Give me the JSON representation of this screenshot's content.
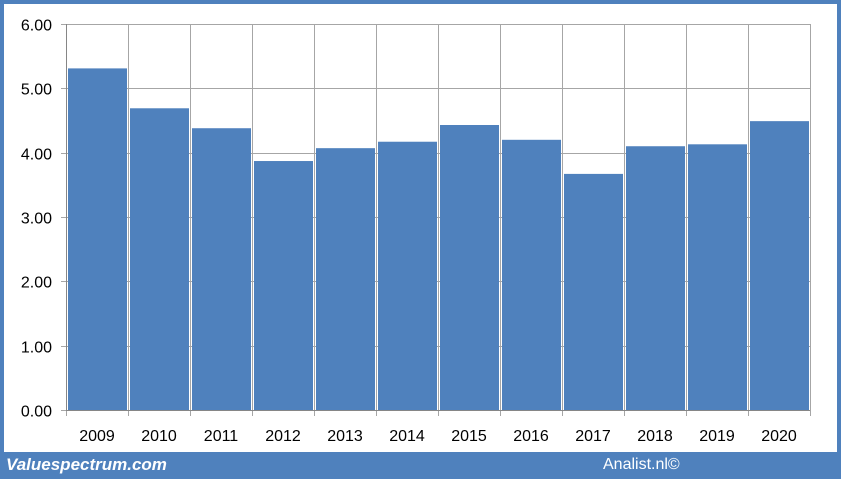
{
  "chart_data": {
    "type": "bar",
    "categories": [
      "2009",
      "2010",
      "2011",
      "2012",
      "2013",
      "2014",
      "2015",
      "2016",
      "2017",
      "2018",
      "2019",
      "2020"
    ],
    "values": [
      5.31,
      4.69,
      4.38,
      3.87,
      4.07,
      4.17,
      4.43,
      4.2,
      3.67,
      4.1,
      4.13,
      4.49
    ],
    "y_ticks": [
      "0.00",
      "1.00",
      "2.00",
      "3.00",
      "4.00",
      "5.00",
      "6.00"
    ],
    "ylim": [
      0,
      6
    ],
    "grid": true,
    "bar_color": "#4f81bd",
    "grid_color": "#a6a6a6"
  },
  "footer": {
    "left": "Valuespectrum.com",
    "right": "Analist.nl©"
  },
  "colors": {
    "frame": "#4f81bd",
    "background": "#ffffff"
  }
}
